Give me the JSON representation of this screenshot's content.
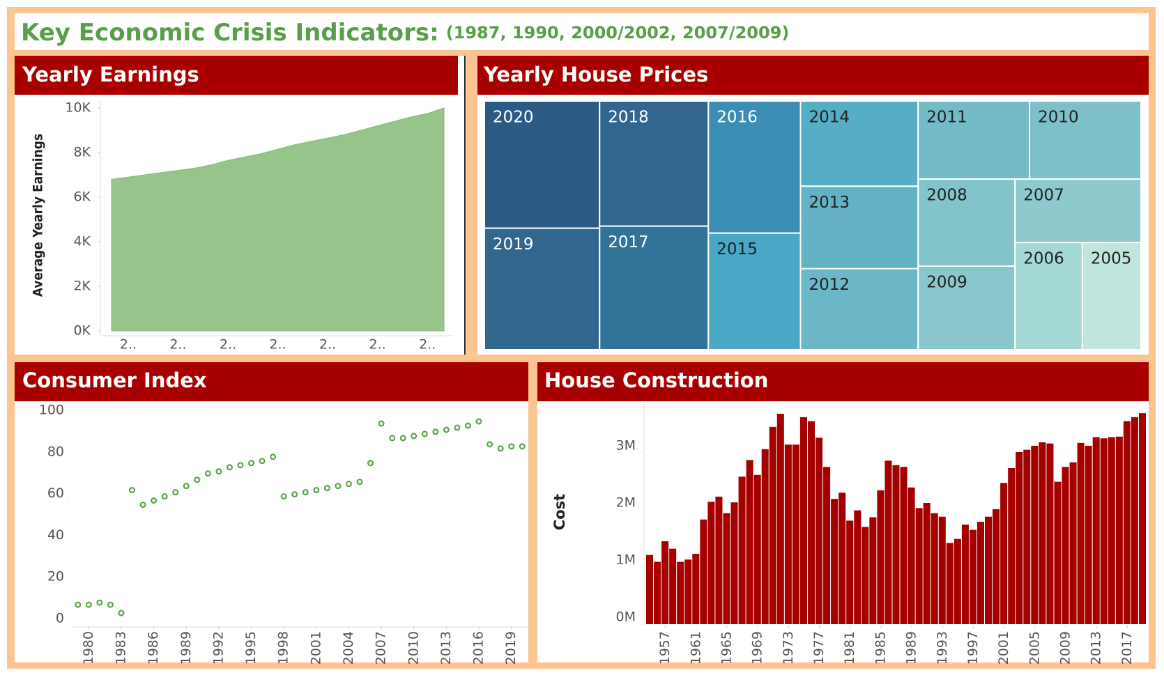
{
  "header": {
    "title": "Key Economic Crisis Indicators:",
    "subtitle": "(1987, 1990, 2000/2002, 2007/2009)"
  },
  "chart_data": [
    {
      "type": "area",
      "title": "Yearly Earnings",
      "y_label": "Average Yearly Earnings",
      "color": "#97c48b",
      "categories": [
        null,
        "2..",
        null,
        null,
        "2..",
        null,
        null,
        "2..",
        null,
        null,
        "2..",
        null,
        null,
        "2..",
        null,
        null,
        "2..",
        null,
        null,
        "2..",
        null
      ],
      "values": [
        6800,
        6900,
        7000,
        7100,
        7200,
        7300,
        7450,
        7650,
        7800,
        7950,
        8150,
        8350,
        8500,
        8650,
        8800,
        9000,
        9200,
        9400,
        9600,
        9750,
        10000
      ],
      "ylim": [
        0,
        10000
      ],
      "yticks": [
        {
          "value": 0,
          "label": "0K"
        },
        {
          "value": 2000,
          "label": "2K"
        },
        {
          "value": 4000,
          "label": "4K"
        },
        {
          "value": 6000,
          "label": "6K"
        },
        {
          "value": 8000,
          "label": "8K"
        },
        {
          "value": 10000,
          "label": "10K"
        }
      ]
    },
    {
      "type": "treemap",
      "title": "Yearly House Prices",
      "categories": [
        "2020",
        "2019",
        "2018",
        "2017",
        "2016",
        "2015",
        "2014",
        "2013",
        "2012",
        "2011",
        "2010",
        "2008",
        "2009",
        "2007",
        "2006",
        "2005"
      ],
      "values": [
        266,
        254,
        247,
        244,
        221,
        195,
        182,
        176,
        173,
        158,
        158,
        153,
        147,
        145,
        131,
        114
      ],
      "colors": [
        "#2c5a86",
        "#31668f",
        "#31678f",
        "#337399",
        "#3b8db4",
        "#4aa7c5",
        "#55aec6",
        "#62b2c4",
        "#6bb7c8",
        "#72bbc7",
        "#7dc0c9",
        "#83c4cb",
        "#88c7cc",
        "#8dc9cd",
        "#a4d8d4",
        "#bfe5dc"
      ]
    },
    {
      "type": "scatter",
      "title": "Consumer Index",
      "color": "#5a9e4b",
      "x": [
        1979,
        1980,
        1981,
        1982,
        1983,
        1984,
        1985,
        1986,
        1987,
        1988,
        1989,
        1990,
        1991,
        1992,
        1993,
        1994,
        1995,
        1996,
        1997,
        1998,
        1999,
        2000,
        2001,
        2002,
        2003,
        2004,
        2005,
        2006,
        2007,
        2008,
        2009,
        2010,
        2011,
        2012,
        2013,
        2014,
        2015,
        2016,
        2017,
        2018,
        2019,
        2020
      ],
      "values": [
        10,
        10,
        11,
        10,
        6,
        65,
        58,
        60,
        62,
        64,
        67,
        70,
        73,
        74,
        76,
        77,
        78,
        79,
        81,
        62,
        63,
        64,
        65,
        66,
        67,
        68,
        69,
        78,
        97,
        90,
        90,
        91,
        92,
        93,
        94,
        95,
        96,
        98,
        87,
        85,
        86,
        86
      ],
      "xlim": [
        1978.5,
        2020.5
      ],
      "xticks": [
        1980,
        1983,
        1986,
        1989,
        1992,
        1995,
        1998,
        2001,
        2004,
        2007,
        2010,
        2013,
        2016,
        2019
      ],
      "ylim": [
        0,
        100
      ],
      "yticks": [
        0,
        20,
        40,
        60,
        80,
        100
      ]
    },
    {
      "type": "bar",
      "title": "House Construction",
      "y_label": "Cost",
      "color": "#a50000",
      "x": [
        1955,
        1956,
        1957,
        1958,
        1959,
        1960,
        1961,
        1962,
        1963,
        1964,
        1965,
        1966,
        1967,
        1968,
        1969,
        1970,
        1971,
        1972,
        1973,
        1974,
        1975,
        1976,
        1977,
        1978,
        1979,
        1980,
        1981,
        1982,
        1983,
        1984,
        1985,
        1986,
        1987,
        1988,
        1989,
        1990,
        1991,
        1992,
        1993,
        1994,
        1995,
        1996,
        1997,
        1998,
        1999,
        2000,
        2001,
        2002,
        2003,
        2004,
        2005,
        2006,
        2007,
        2008,
        2009,
        2010,
        2011,
        2012,
        2013,
        2014,
        2015,
        2016,
        2017,
        2018,
        2019
      ],
      "values": [
        1210000,
        1090000,
        1450000,
        1320000,
        1090000,
        1130000,
        1230000,
        1830000,
        2140000,
        2230000,
        1940000,
        2130000,
        2580000,
        2870000,
        2610000,
        3060000,
        3450000,
        3680000,
        3140000,
        3140000,
        3620000,
        3550000,
        3260000,
        2750000,
        2190000,
        2300000,
        1810000,
        1990000,
        1700000,
        1870000,
        2340000,
        2860000,
        2780000,
        2750000,
        2390000,
        2030000,
        2120000,
        1940000,
        1880000,
        1420000,
        1490000,
        1740000,
        1650000,
        1790000,
        1880000,
        2010000,
        2470000,
        2730000,
        3010000,
        3050000,
        3120000,
        3180000,
        3160000,
        2490000,
        2750000,
        2830000,
        3170000,
        3120000,
        3270000,
        3250000,
        3270000,
        3280000,
        3550000,
        3620000,
        3690000
      ],
      "xlim": [
        1954.5,
        2019.5
      ],
      "xticks": [
        1957,
        1961,
        1965,
        1969,
        1973,
        1977,
        1981,
        1985,
        1989,
        1993,
        1997,
        2001,
        2005,
        2009,
        2013,
        2017
      ],
      "ylim": [
        0,
        3850000
      ],
      "yticks": [
        {
          "value": 0,
          "label": "0M"
        },
        {
          "value": 1000000,
          "label": "1M"
        },
        {
          "value": 2000000,
          "label": "2M"
        },
        {
          "value": 3000000,
          "label": "3M"
        }
      ]
    }
  ]
}
